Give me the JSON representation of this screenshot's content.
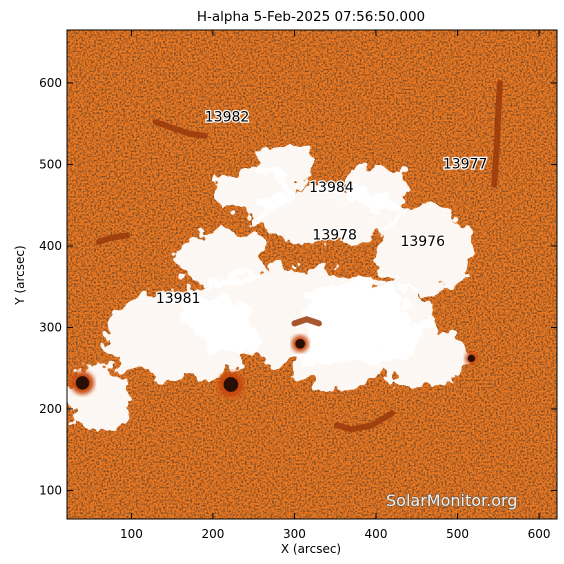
{
  "title": "H-alpha  5-Feb-2025 07:56:50.000",
  "watermark": "SolarMonitor.org",
  "x_axis": {
    "label": "X (arcsec)",
    "ticks": [
      "100",
      "200",
      "300",
      "400",
      "500",
      "600"
    ],
    "values": [
      100,
      200,
      300,
      400,
      500,
      600
    ],
    "range": [
      21,
      622
    ]
  },
  "y_axis": {
    "label": "Y (arcsec)",
    "ticks": [
      "100",
      "200",
      "300",
      "400",
      "500",
      "600"
    ],
    "values": [
      100,
      200,
      300,
      400,
      500,
      600
    ],
    "range": [
      65,
      665
    ]
  },
  "colors": {
    "background": "#ee7a22",
    "dark": "#2a0f04",
    "bright": "#ffffff",
    "axis": "#000000"
  },
  "active_regions": [
    {
      "id": "13982",
      "label": "13982",
      "x": 190,
      "y": 553
    },
    {
      "id": "13977",
      "label": "13977",
      "x": 482,
      "y": 495
    },
    {
      "id": "13984",
      "label": "13984",
      "x": 318,
      "y": 466
    },
    {
      "id": "13978",
      "label": "13978",
      "x": 322,
      "y": 408
    },
    {
      "id": "13976",
      "label": "13976",
      "x": 430,
      "y": 400
    },
    {
      "id": "13981",
      "label": "13981",
      "x": 130,
      "y": 330
    }
  ],
  "sunspots": [
    {
      "x": 40,
      "y": 232,
      "r": 11
    },
    {
      "x": 222,
      "y": 230,
      "r": 12
    },
    {
      "x": 307,
      "y": 280,
      "r": 8
    },
    {
      "x": 517,
      "y": 262,
      "r": 6
    }
  ],
  "plage": [
    {
      "x": 300,
      "y": 315,
      "rx": 140,
      "ry": 60
    },
    {
      "x": 160,
      "y": 290,
      "rx": 95,
      "ry": 55
    },
    {
      "x": 390,
      "y": 310,
      "rx": 80,
      "ry": 50
    },
    {
      "x": 455,
      "y": 265,
      "rx": 55,
      "ry": 40
    },
    {
      "x": 460,
      "y": 395,
      "rx": 60,
      "ry": 55
    },
    {
      "x": 340,
      "y": 440,
      "rx": 90,
      "ry": 35
    },
    {
      "x": 250,
      "y": 465,
      "rx": 50,
      "ry": 30
    },
    {
      "x": 290,
      "y": 500,
      "rx": 35,
      "ry": 28
    },
    {
      "x": 400,
      "y": 470,
      "rx": 40,
      "ry": 30
    },
    {
      "x": 60,
      "y": 215,
      "rx": 40,
      "ry": 40
    },
    {
      "x": 210,
      "y": 385,
      "rx": 55,
      "ry": 35
    },
    {
      "x": 350,
      "y": 255,
      "rx": 55,
      "ry": 30
    }
  ],
  "filaments": [
    {
      "points": [
        [
          60,
          405
        ],
        [
          75,
          410
        ],
        [
          95,
          413
        ]
      ]
    },
    {
      "points": [
        [
          130,
          552
        ],
        [
          150,
          545
        ],
        [
          170,
          538
        ],
        [
          190,
          535
        ]
      ]
    },
    {
      "points": [
        [
          352,
          180
        ],
        [
          370,
          175
        ],
        [
          395,
          180
        ],
        [
          420,
          195
        ]
      ]
    },
    {
      "points": [
        [
          545,
          475
        ],
        [
          548,
          520
        ],
        [
          550,
          565
        ],
        [
          552,
          600
        ]
      ]
    },
    {
      "points": [
        [
          300,
          305
        ],
        [
          315,
          310
        ],
        [
          330,
          305
        ]
      ]
    }
  ]
}
